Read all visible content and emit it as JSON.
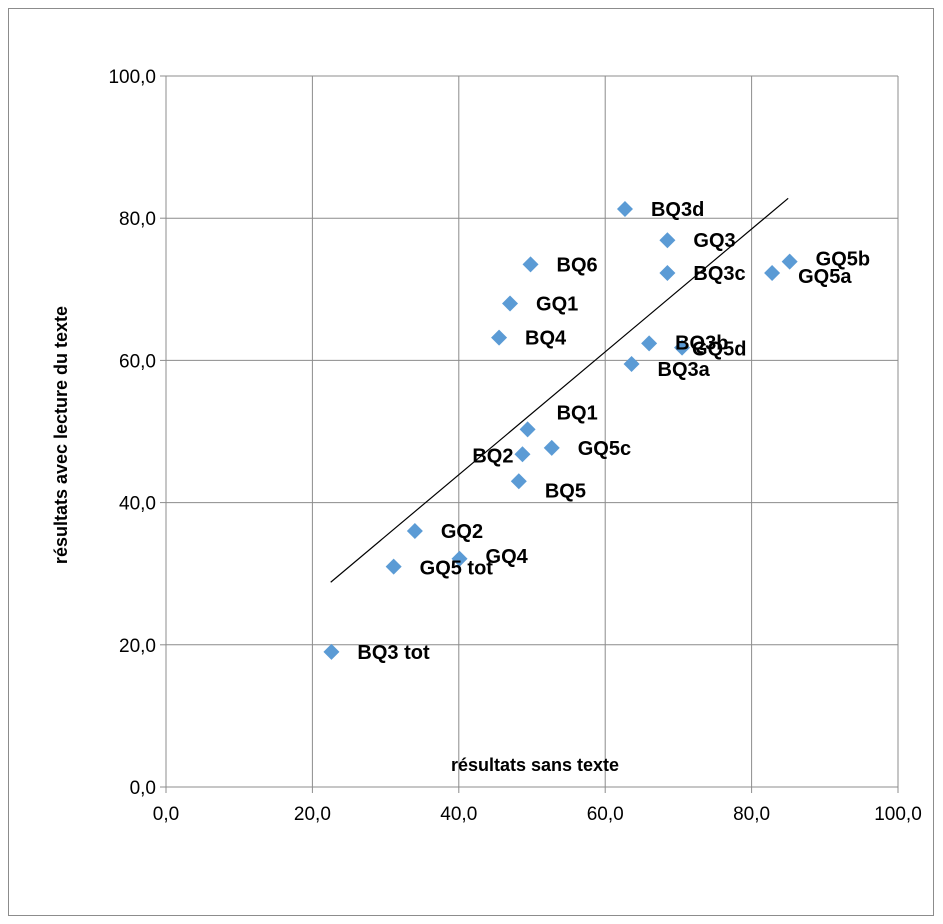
{
  "chart_data": {
    "type": "scatter",
    "title": "",
    "xlabel": "résultats sans texte",
    "ylabel": "résultats avec lecture du texte",
    "xlim": [
      0,
      100
    ],
    "ylim": [
      0,
      100
    ],
    "x_ticks": [
      "0,0",
      "20,0",
      "40,0",
      "60,0",
      "80,0",
      "100,0"
    ],
    "y_ticks": [
      "0,0",
      "20,0",
      "40,0",
      "60,0",
      "80,0",
      "100,0"
    ],
    "grid": true,
    "marker_color": "#5b9bd5",
    "points": [
      {
        "label": "BQ3d",
        "x": 62.7,
        "y": 81.3
      },
      {
        "label": "GQ3",
        "x": 68.5,
        "y": 76.9
      },
      {
        "label": "BQ6",
        "x": 49.8,
        "y": 73.5
      },
      {
        "label": "BQ3c",
        "x": 68.5,
        "y": 72.3
      },
      {
        "label": "GQ5a",
        "x": 82.8,
        "y": 72.3
      },
      {
        "label": "GQ5b",
        "x": 85.2,
        "y": 73.9
      },
      {
        "label": "GQ1",
        "x": 47.0,
        "y": 68.0
      },
      {
        "label": "BQ4",
        "x": 45.5,
        "y": 63.2
      },
      {
        "label": "BQ3b",
        "x": 66.0,
        "y": 62.4
      },
      {
        "label": "GQ5d",
        "x": 70.5,
        "y": 61.8
      },
      {
        "label": "BQ3a",
        "x": 63.6,
        "y": 59.5
      },
      {
        "label": "BQ1",
        "x": 49.4,
        "y": 50.3
      },
      {
        "label": "GQ5c",
        "x": 52.7,
        "y": 47.7
      },
      {
        "label": "BQ2",
        "x": 48.7,
        "y": 46.8
      },
      {
        "label": "BQ5",
        "x": 48.2,
        "y": 43.0
      },
      {
        "label": "GQ2",
        "x": 34.0,
        "y": 36.0
      },
      {
        "label": "GQ4",
        "x": 40.1,
        "y": 32.1
      },
      {
        "label": "GQ5 tot",
        "x": 31.1,
        "y": 31.0
      },
      {
        "label": "BQ3 tot",
        "x": 22.6,
        "y": 19.0
      }
    ],
    "trendline": {
      "x": [
        22.5,
        85.0
      ],
      "y": [
        28.8,
        82.8
      ]
    }
  }
}
